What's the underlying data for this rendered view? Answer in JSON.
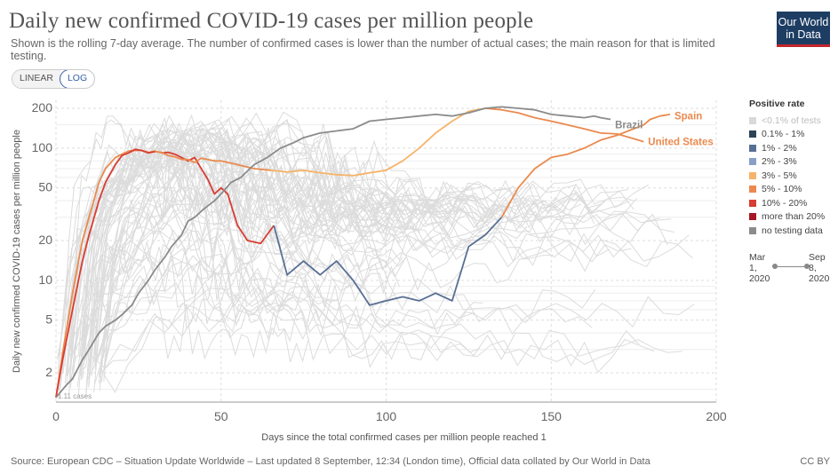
{
  "header": {
    "title": "Daily new confirmed COVID-19 cases per million people",
    "subtitle": "Shown is the rolling 7-day average. The number of confirmed cases is lower than the number of actual cases; the main reason for that is limited testing.",
    "logo_line1": "Our World",
    "logo_line2": "in Data"
  },
  "scale_toggle": {
    "linear": "LINEAR",
    "log": "LOG",
    "selected": "LOG"
  },
  "legend": {
    "title": "Positive rate",
    "items": [
      {
        "label": "<0.1% of tests",
        "color": "#d9d9d9",
        "faded": true
      },
      {
        "label": "0.1% - 1%",
        "color": "#2d4257"
      },
      {
        "label": "1% - 2%",
        "color": "#586f94"
      },
      {
        "label": "2% - 3%",
        "color": "#88a0c6"
      },
      {
        "label": "3% - 5%",
        "color": "#f6b46a"
      },
      {
        "label": "5% - 10%",
        "color": "#ea8a4e"
      },
      {
        "label": "10% - 20%",
        "color": "#d83c32"
      },
      {
        "label": "more than 20%",
        "color": "#a51726"
      },
      {
        "label": "no testing data",
        "color": "#8b8b8b"
      }
    ]
  },
  "timeline": {
    "start": "Mar 1, 2020",
    "start_a": "Mar",
    "start_b": "1,",
    "start_c": "2020",
    "end_a": "Sep",
    "end_b": "8,",
    "end_c": "2020"
  },
  "footer": {
    "source": "Source: European CDC – Situation Update Worldwide – Last updated 8 September, 12:34 (London time), Official data collated by Our World in Data",
    "license": "CC BY"
  },
  "chart_data": {
    "type": "line",
    "title": "Daily new confirmed COVID-19 cases per million people",
    "xlabel": "Days since the total confirmed cases per million people reached 1",
    "ylabel": "Daily new confirmed COVID-19 cases per million people",
    "x_scale": "linear",
    "y_scale": "log",
    "xlim": [
      0,
      200
    ],
    "ylim": [
      1.2,
      230
    ],
    "x_ticks": [
      0,
      50,
      100,
      150,
      200
    ],
    "y_ticks": [
      2,
      5,
      10,
      20,
      50,
      100,
      200
    ],
    "grid": true,
    "start_annotation": "1.11 cases",
    "series": [
      {
        "name": "Spain",
        "x": [
          0,
          2,
          5,
          8,
          10,
          13,
          15,
          18,
          20,
          22,
          24,
          26,
          28,
          30,
          32,
          34,
          36,
          38,
          40,
          42,
          44,
          46,
          48,
          50,
          52,
          55,
          58,
          62,
          66,
          70,
          75,
          80,
          85,
          90,
          95,
          100,
          105,
          110,
          115,
          120,
          125,
          130,
          135,
          140,
          145,
          150,
          155,
          160,
          165,
          170,
          175,
          178,
          180,
          183,
          186
        ],
        "y": [
          1.3,
          2.8,
          8,
          20,
          30,
          55,
          70,
          85,
          90,
          95,
          96,
          96,
          93,
          95,
          92,
          93,
          90,
          85,
          80,
          85,
          70,
          58,
          45,
          50,
          45,
          26,
          20,
          19,
          26,
          11,
          14,
          11,
          14,
          10,
          6.5,
          7,
          7.5,
          7,
          8,
          7,
          18,
          22,
          30,
          50,
          70,
          85,
          90,
          100,
          115,
          125,
          140,
          150,
          165,
          175,
          180
        ],
        "colors": [
          "#ea8a4e",
          "#d83c32",
          "#586f94",
          "#ea8a4e"
        ],
        "label_x": 186,
        "label_y": 175
      },
      {
        "name": "United States",
        "x": [
          0,
          2,
          5,
          8,
          10,
          13,
          15,
          18,
          20,
          22,
          24,
          26,
          28,
          30,
          32,
          34,
          36,
          38,
          40,
          42,
          44,
          46,
          48,
          50,
          55,
          60,
          65,
          70,
          75,
          80,
          85,
          90,
          95,
          100,
          105,
          110,
          115,
          120,
          125,
          130,
          135,
          140,
          145,
          150,
          155,
          160,
          165,
          170,
          175,
          178
        ],
        "y": [
          1.3,
          2.5,
          6,
          14,
          22,
          40,
          55,
          75,
          88,
          92,
          98,
          96,
          92,
          94,
          93,
          88,
          86,
          82,
          82,
          78,
          84,
          82,
          80,
          80,
          75,
          70,
          68,
          66,
          68,
          65,
          63,
          62,
          65,
          68,
          80,
          100,
          130,
          160,
          190,
          200,
          195,
          185,
          170,
          160,
          150,
          140,
          130,
          128,
          118,
          112
        ],
        "colors": [
          "#d83c32",
          "#ea8a4e",
          "#f6b46a",
          "#ea8a4e"
        ],
        "label_x": 178,
        "label_y": 112
      },
      {
        "name": "Brazil",
        "x": [
          0,
          3,
          5,
          8,
          10,
          13,
          15,
          18,
          20,
          23,
          25,
          28,
          30,
          33,
          35,
          38,
          40,
          42,
          45,
          48,
          50,
          53,
          56,
          60,
          64,
          68,
          72,
          75,
          80,
          85,
          90,
          95,
          100,
          105,
          110,
          115,
          120,
          125,
          130,
          135,
          140,
          145,
          150,
          155,
          160,
          163,
          165,
          168
        ],
        "y": [
          1.3,
          1.6,
          1.8,
          2.5,
          3,
          4,
          4.5,
          5,
          5.5,
          6.5,
          8,
          10,
          12,
          15,
          18,
          22,
          28,
          30,
          35,
          40,
          45,
          55,
          60,
          75,
          85,
          100,
          110,
          120,
          130,
          135,
          140,
          160,
          165,
          170,
          175,
          180,
          175,
          185,
          200,
          205,
          200,
          195,
          180,
          175,
          170,
          175,
          170,
          165
        ],
        "colors": [
          "#8b8b8b"
        ],
        "label_x": 168,
        "label_y": 150
      }
    ]
  }
}
